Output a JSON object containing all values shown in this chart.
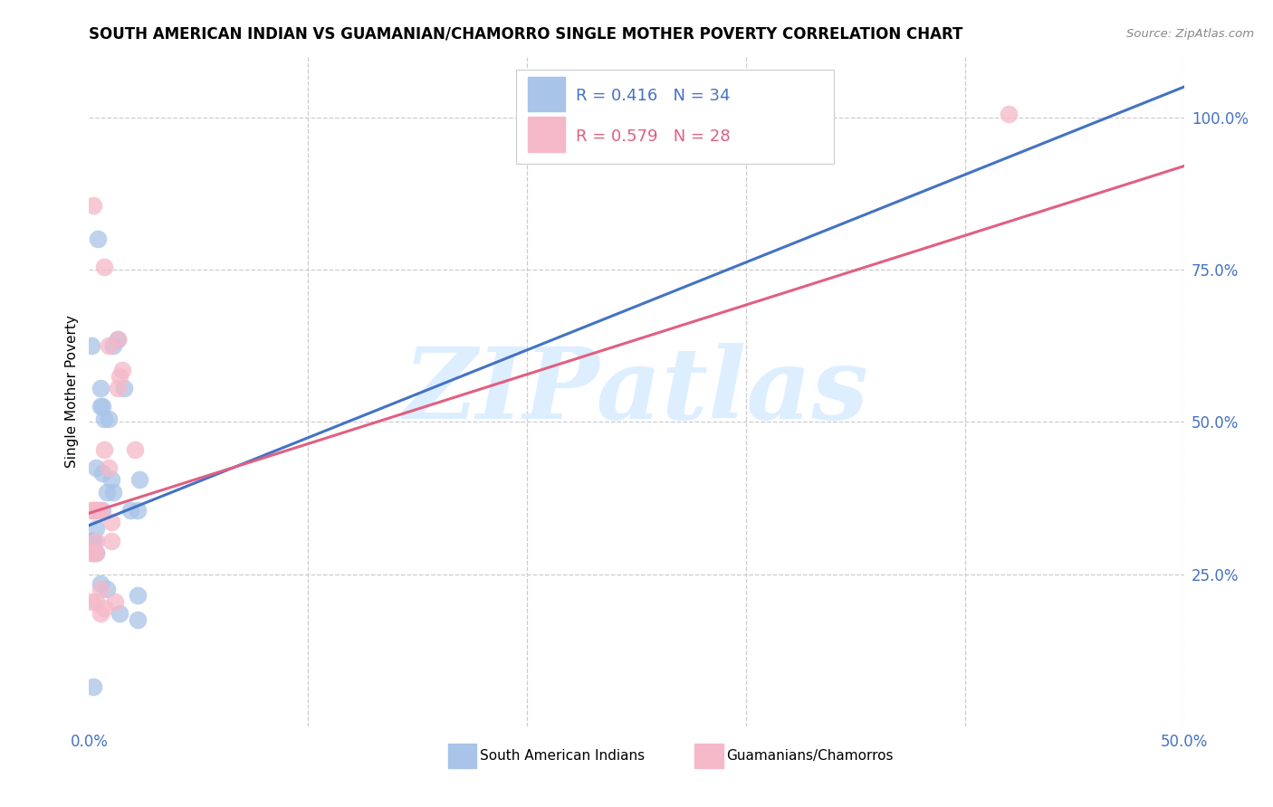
{
  "title": "SOUTH AMERICAN INDIAN VS GUAMANIAN/CHAMORRO SINGLE MOTHER POVERTY CORRELATION CHART",
  "source": "Source: ZipAtlas.com",
  "ylabel": "Single Mother Poverty",
  "xlim": [
    0.0,
    0.5
  ],
  "ylim": [
    0.0,
    1.1
  ],
  "xtick_positions": [
    0.0,
    0.1,
    0.2,
    0.3,
    0.4,
    0.5
  ],
  "xtick_labels": [
    "0.0%",
    "",
    "",
    "",
    "",
    "50.0%"
  ],
  "yticks_right": [
    0.25,
    0.5,
    0.75,
    1.0
  ],
  "ytick_right_labels": [
    "25.0%",
    "50.0%",
    "75.0%",
    "100.0%"
  ],
  "legend_line1": "R = 0.416   N = 34",
  "legend_line2": "R = 0.579   N = 28",
  "legend_r_blue": "R = 0.416",
  "legend_n_blue": "N = 34",
  "legend_r_pink": "R = 0.579",
  "legend_n_pink": "N = 28",
  "blue_color": "#a8c4e8",
  "pink_color": "#f5b8c8",
  "line_blue_color": "#4472c4",
  "line_pink_color": "#e06080",
  "accent_blue": "#4472c4",
  "accent_pink": "#e06080",
  "watermark_text": "ZIPatlas",
  "watermark_color": "#ddeeff",
  "background_color": "#ffffff",
  "grid_color": "#cccccc",
  "blue_scatter_x": [
    0.003,
    0.006,
    0.019,
    0.022,
    0.001,
    0.004,
    0.005,
    0.005,
    0.006,
    0.007,
    0.009,
    0.011,
    0.013,
    0.016,
    0.003,
    0.006,
    0.01,
    0.002,
    0.001,
    0.001,
    0.001,
    0.002,
    0.002,
    0.003,
    0.003,
    0.005,
    0.008,
    0.008,
    0.011,
    0.014,
    0.022,
    0.022,
    0.002,
    0.023
  ],
  "blue_scatter_y": [
    0.355,
    0.355,
    0.355,
    0.355,
    0.625,
    0.8,
    0.555,
    0.525,
    0.525,
    0.505,
    0.505,
    0.625,
    0.635,
    0.555,
    0.425,
    0.415,
    0.405,
    0.305,
    0.305,
    0.305,
    0.285,
    0.285,
    0.305,
    0.325,
    0.285,
    0.235,
    0.225,
    0.385,
    0.385,
    0.185,
    0.175,
    0.215,
    0.065,
    0.405
  ],
  "pink_scatter_x": [
    0.001,
    0.002,
    0.003,
    0.004,
    0.005,
    0.007,
    0.009,
    0.01,
    0.01,
    0.013,
    0.014,
    0.015,
    0.001,
    0.002,
    0.003,
    0.003,
    0.005,
    0.005,
    0.007,
    0.009,
    0.012,
    0.021,
    0.003,
    0.007,
    0.001,
    0.013,
    0.42,
    0.002
  ],
  "pink_scatter_y": [
    0.355,
    0.355,
    0.355,
    0.355,
    0.355,
    0.455,
    0.425,
    0.305,
    0.335,
    0.555,
    0.575,
    0.585,
    0.285,
    0.285,
    0.285,
    0.305,
    0.225,
    0.185,
    0.755,
    0.625,
    0.205,
    0.455,
    0.205,
    0.195,
    0.205,
    0.635,
    1.005,
    0.855
  ],
  "blue_line_x": [
    0.0,
    0.5
  ],
  "blue_line_y": [
    0.33,
    1.05
  ],
  "pink_line_x": [
    0.0,
    0.5
  ],
  "pink_line_y": [
    0.35,
    0.92
  ]
}
